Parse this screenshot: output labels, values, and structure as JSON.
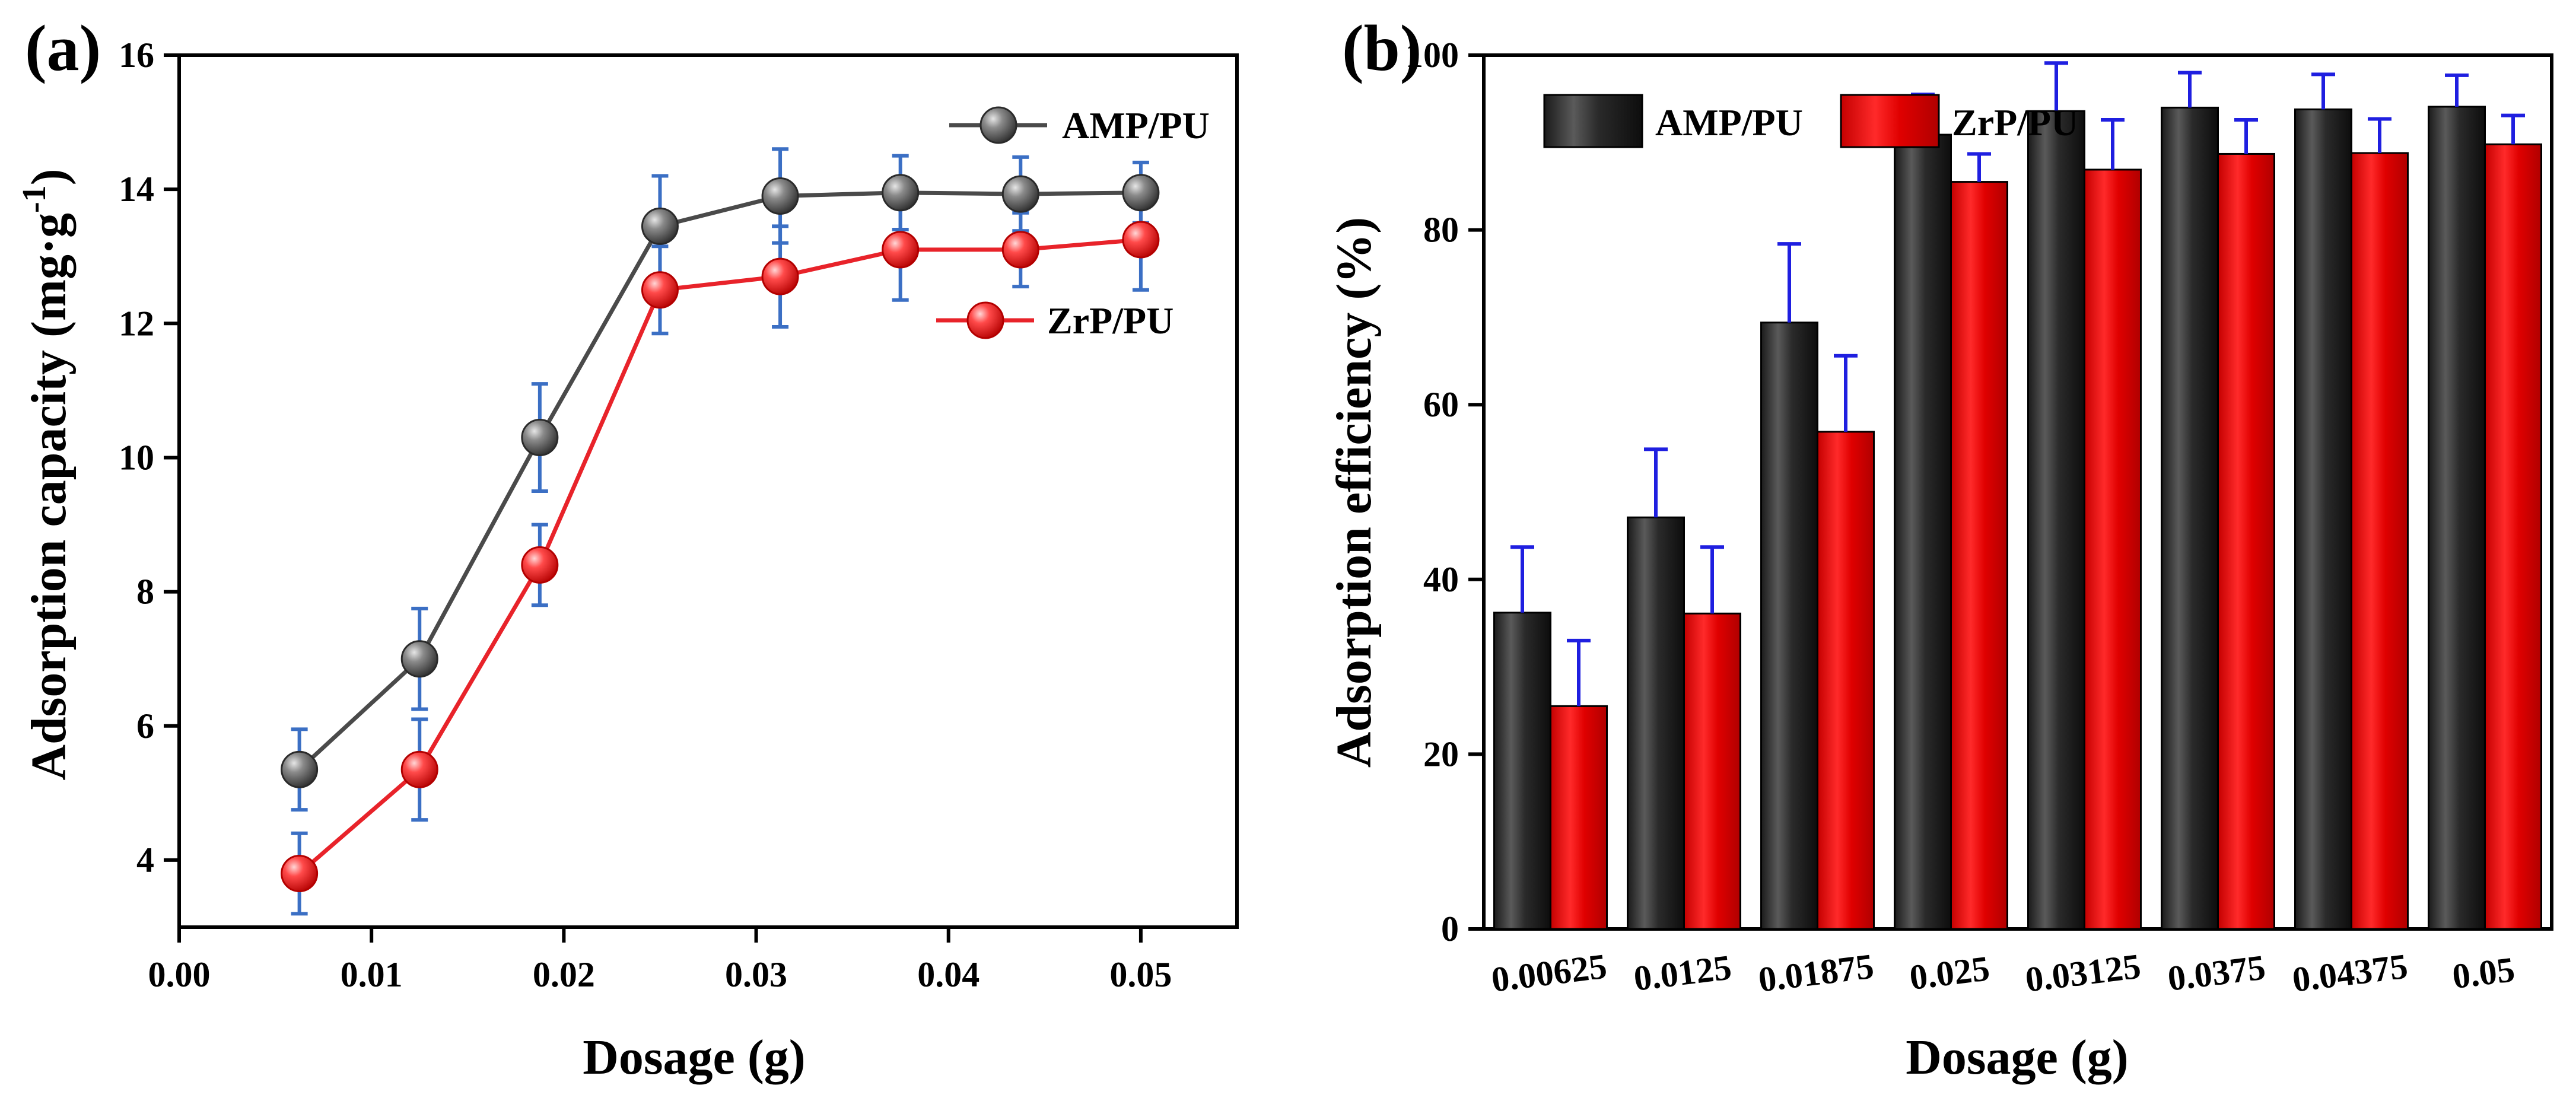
{
  "panel_a_label": "(a)",
  "panel_b_label": "(b)",
  "chart_data": [
    {
      "type": "line",
      "panel": "(a)",
      "xlabel": "Dosage (g)",
      "ylabel_main": "Adsorption capacity (mg·g",
      "ylabel_sup": "-1",
      "ylabel_close": ")",
      "xlim": [
        0.0,
        0.055
      ],
      "ylim": [
        3,
        16
      ],
      "xticks": [
        0.0,
        0.01,
        0.02,
        0.03,
        0.04,
        0.05
      ],
      "xtick_labels": [
        "0.00",
        "0.01",
        "0.02",
        "0.03",
        "0.04",
        "0.05"
      ],
      "yticks": [
        4,
        6,
        8,
        10,
        12,
        14,
        16
      ],
      "ytick_labels": [
        "4",
        "6",
        "8",
        "10",
        "12",
        "14",
        "16"
      ],
      "x": [
        0.00625,
        0.0125,
        0.01875,
        0.025,
        0.03125,
        0.0375,
        0.04375,
        0.05
      ],
      "series": [
        {
          "name": "AMP/PU",
          "color": "#4a4a4a",
          "values": [
            5.35,
            7.0,
            10.3,
            13.45,
            13.9,
            13.95,
            13.93,
            13.95
          ],
          "errors": [
            0.6,
            0.75,
            0.8,
            0.75,
            0.7,
            0.55,
            0.55,
            0.45
          ]
        },
        {
          "name": "ZrP/PU",
          "color": "#e8232a",
          "values": [
            3.8,
            5.35,
            8.4,
            12.5,
            12.7,
            13.1,
            13.1,
            13.25
          ],
          "errors": [
            0.6,
            0.75,
            0.6,
            0.65,
            0.75,
            0.75,
            0.55,
            0.75
          ]
        }
      ],
      "error_color": "#3b6fc4",
      "legend": "top-right"
    },
    {
      "type": "bar",
      "panel": "(b)",
      "xlabel": "Dosage (g)",
      "ylabel": "Adsorption efficiency (%)",
      "ylim": [
        0,
        100
      ],
      "yticks": [
        0,
        20,
        40,
        60,
        80,
        100
      ],
      "ytick_labels": [
        "0",
        "20",
        "40",
        "60",
        "80",
        "100"
      ],
      "categories": [
        "0.00625",
        "0.0125",
        "0.01875",
        "0.025",
        "0.03125",
        "0.0375",
        "0.04375",
        "0.05"
      ],
      "series": [
        {
          "name": "AMP/PU",
          "color": "#2b2b2b",
          "values": [
            36.2,
            47.1,
            69.4,
            90.9,
            93.6,
            94.0,
            93.8,
            94.1
          ],
          "errors": [
            7.5,
            7.8,
            9.0,
            4.6,
            5.5,
            4.0,
            4.0,
            3.6
          ]
        },
        {
          "name": "ZrP/PU",
          "color": "#e00000",
          "values": [
            25.5,
            36.1,
            56.9,
            85.5,
            86.9,
            88.7,
            88.8,
            89.8
          ],
          "errors": [
            7.5,
            7.6,
            8.7,
            3.2,
            5.7,
            3.9,
            3.9,
            3.3
          ]
        }
      ],
      "error_color": "#1f1fe0",
      "legend": "top-left"
    }
  ]
}
